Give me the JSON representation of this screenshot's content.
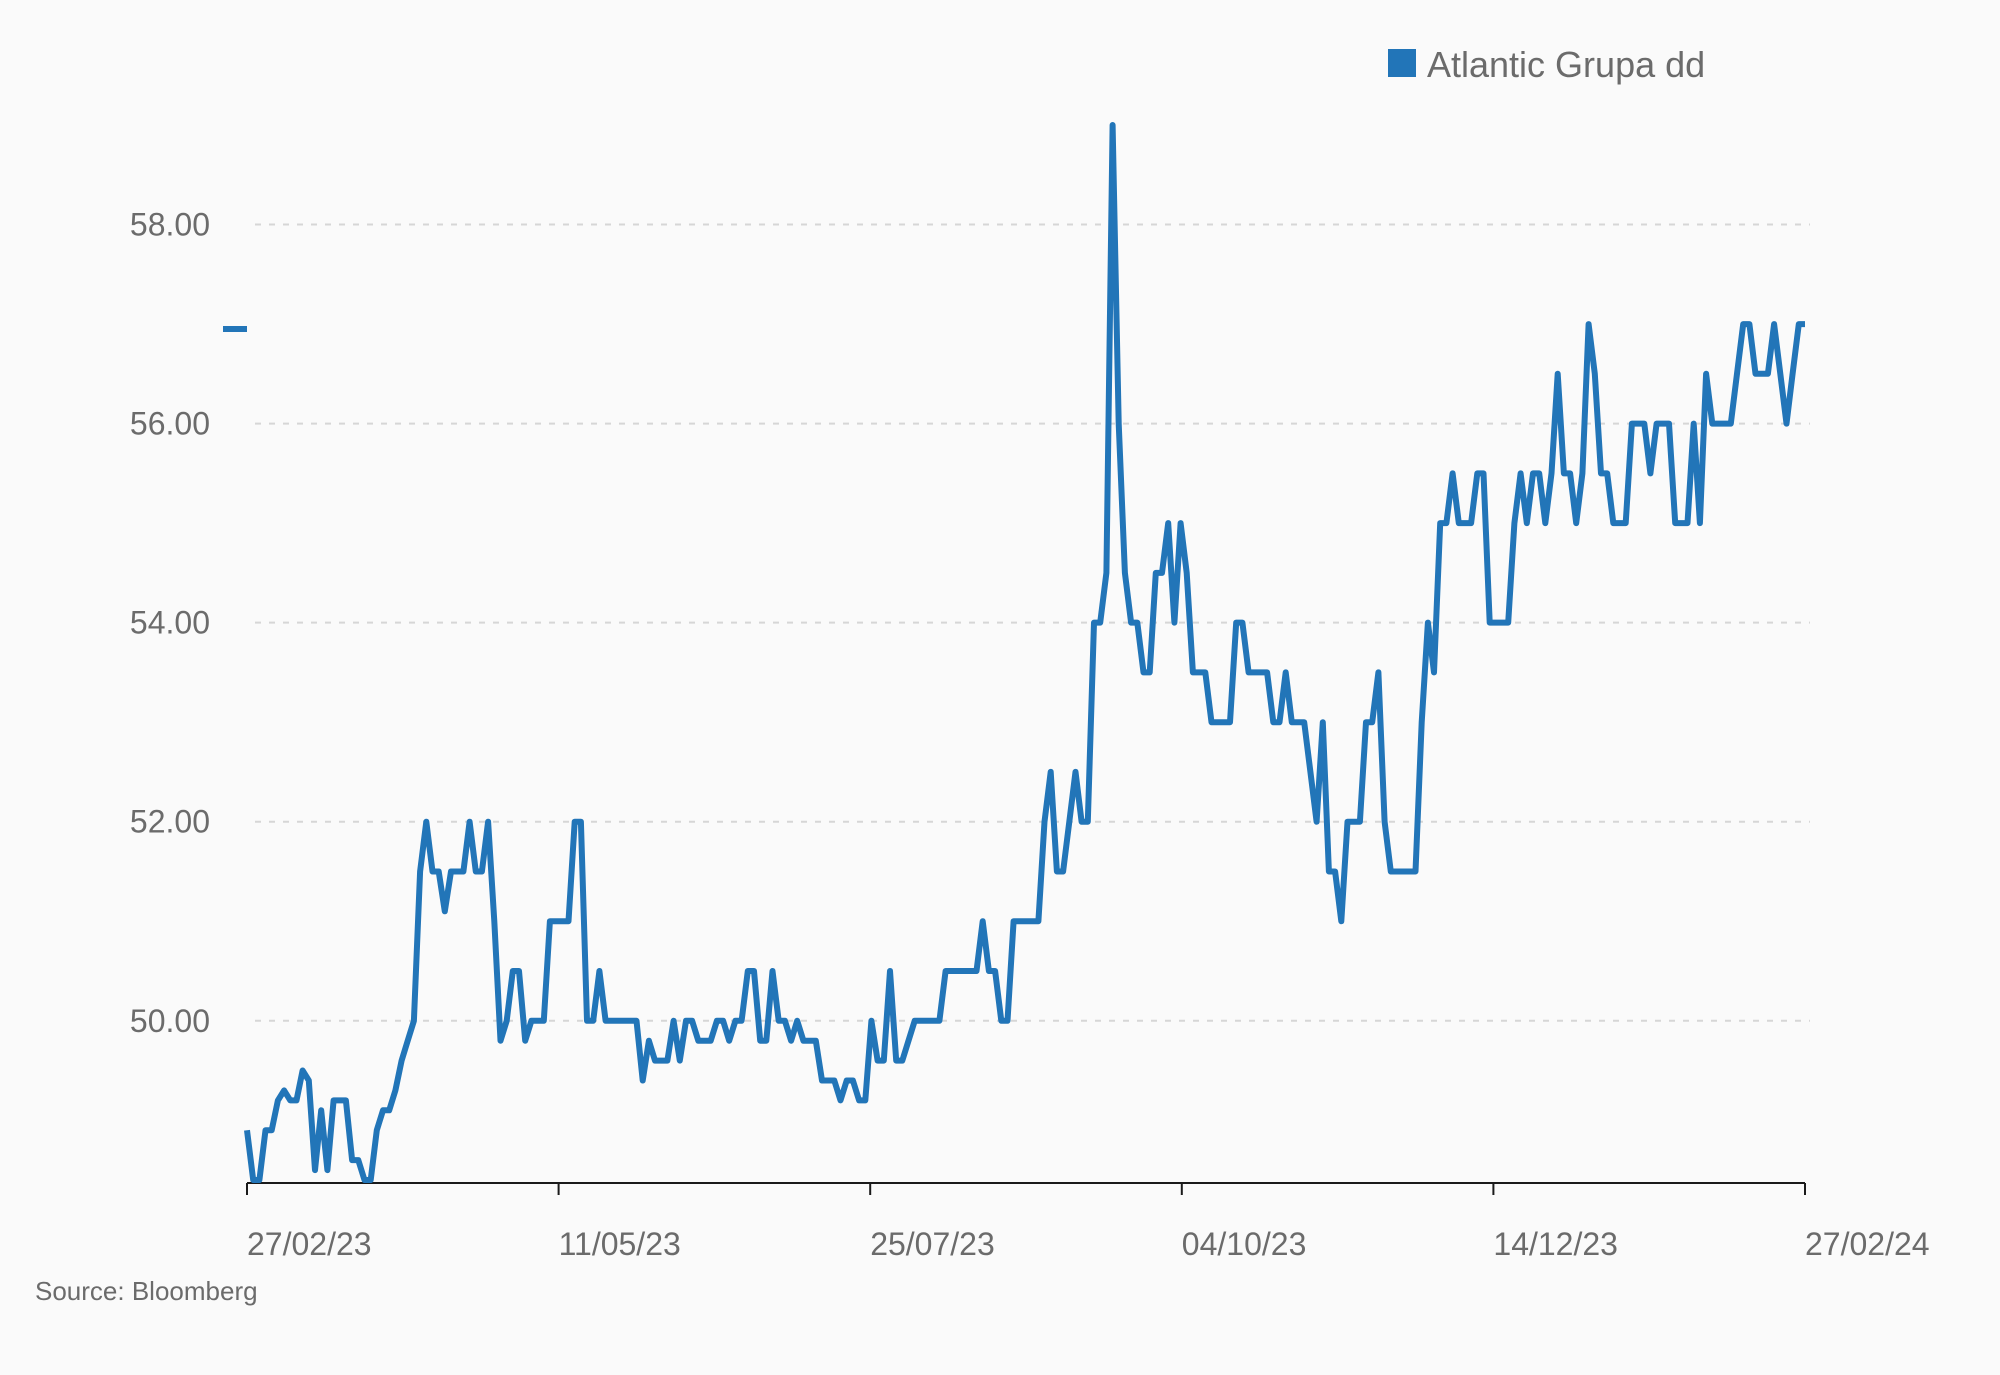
{
  "chart_data": {
    "type": "line",
    "title": "",
    "xlabel": "",
    "ylabel": "",
    "x_tick_labels": [
      "27/02/23",
      "11/05/23",
      "25/07/23",
      "04/10/23",
      "14/12/23",
      "27/02/24"
    ],
    "y_tick_labels": [
      "50.00",
      "52.00",
      "54.00",
      "56.00",
      "58.00"
    ],
    "y_ticks": [
      50,
      52,
      54,
      56,
      58
    ],
    "ylim": [
      48.37,
      59.0
    ],
    "xlim": [
      0,
      252
    ],
    "grid": "horizontal-dashed",
    "legend_position": "top-right",
    "color": "#2275b8",
    "series": [
      {
        "name": "Atlantic Grupa dd",
        "values": [
          48.9,
          48.4,
          48.4,
          48.9,
          48.9,
          49.2,
          49.3,
          49.2,
          49.2,
          49.5,
          49.4,
          48.5,
          49.1,
          48.5,
          49.2,
          49.2,
          49.2,
          48.6,
          48.6,
          48.4,
          48.4,
          48.9,
          49.1,
          49.1,
          49.3,
          49.6,
          49.8,
          50.0,
          51.5,
          52.0,
          51.5,
          51.5,
          51.1,
          51.5,
          51.5,
          51.5,
          52.0,
          51.5,
          51.5,
          52.0,
          51.0,
          49.8,
          50.0,
          50.5,
          50.5,
          49.8,
          50.0,
          50.0,
          50.0,
          51.0,
          51.0,
          51.0,
          51.0,
          52.0,
          52.0,
          50.0,
          50.0,
          50.5,
          50.0,
          50.0,
          50.0,
          50.0,
          50.0,
          50.0,
          49.4,
          49.8,
          49.6,
          49.6,
          49.6,
          50.0,
          49.6,
          50.0,
          50.0,
          49.8,
          49.8,
          49.8,
          50.0,
          50.0,
          49.8,
          50.0,
          50.0,
          50.5,
          50.5,
          49.8,
          49.8,
          50.5,
          50.0,
          50.0,
          49.8,
          50.0,
          49.8,
          49.8,
          49.8,
          49.4,
          49.4,
          49.4,
          49.2,
          49.4,
          49.4,
          49.2,
          49.2,
          50.0,
          49.6,
          49.6,
          50.5,
          49.6,
          49.6,
          49.8,
          50.0,
          50.0,
          50.0,
          50.0,
          50.0,
          50.5,
          50.5,
          50.5,
          50.5,
          50.5,
          50.5,
          51.0,
          50.5,
          50.5,
          50.0,
          50.0,
          51.0,
          51.0,
          51.0,
          51.0,
          51.0,
          52.0,
          52.5,
          51.5,
          51.5,
          52.0,
          52.5,
          52.0,
          52.0,
          54.0,
          54.0,
          54.5,
          59.0,
          56.0,
          54.5,
          54.0,
          54.0,
          53.5,
          53.5,
          54.5,
          54.5,
          55.0,
          54.0,
          55.0,
          54.5,
          53.5,
          53.5,
          53.5,
          53.0,
          53.0,
          53.0,
          53.0,
          54.0,
          54.0,
          53.5,
          53.5,
          53.5,
          53.5,
          53.0,
          53.0,
          53.5,
          53.0,
          53.0,
          53.0,
          52.5,
          52.0,
          53.0,
          51.5,
          51.5,
          51.0,
          52.0,
          52.0,
          52.0,
          53.0,
          53.0,
          53.5,
          52.0,
          51.5,
          51.5,
          51.5,
          51.5,
          51.5,
          53.0,
          54.0,
          53.5,
          55.0,
          55.0,
          55.5,
          55.0,
          55.0,
          55.0,
          55.5,
          55.5,
          54.0,
          54.0,
          54.0,
          54.0,
          55.0,
          55.5,
          55.0,
          55.5,
          55.5,
          55.0,
          55.5,
          56.5,
          55.5,
          55.5,
          55.0,
          55.5,
          57.0,
          56.5,
          55.5,
          55.5,
          55.0,
          55.0,
          55.0,
          56.0,
          56.0,
          56.0,
          55.5,
          56.0,
          56.0,
          56.0,
          55.0,
          55.0,
          55.0,
          56.0,
          55.0,
          56.5,
          56.0,
          56.0,
          56.0,
          56.0,
          56.5,
          57.0,
          57.0,
          56.5,
          56.5,
          56.5,
          57.0,
          56.5,
          56.0,
          56.5,
          57.0,
          57.0
        ]
      }
    ]
  },
  "source": "Source: Bloomberg"
}
